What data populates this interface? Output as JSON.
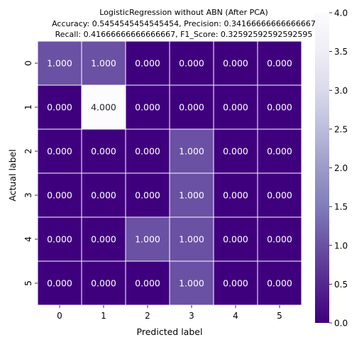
{
  "chart_data": {
    "type": "heatmap",
    "title_lines": [
      "LogisticRegression without ABN (After PCA)",
      "Accuracy: 0.5454545454545454, Precision: 0.34166666666666667",
      "Recall: 0.41666666666666667, F1_Score: 0.32592592592592595"
    ],
    "xlabel": "Predicted label",
    "ylabel": "Actual label",
    "x_categories": [
      "0",
      "1",
      "2",
      "3",
      "4",
      "5"
    ],
    "y_categories": [
      "0",
      "1",
      "2",
      "3",
      "4",
      "5"
    ],
    "matrix": [
      [
        1,
        1,
        0,
        0,
        0,
        0
      ],
      [
        0,
        4,
        0,
        0,
        0,
        0
      ],
      [
        0,
        0,
        0,
        1,
        0,
        0
      ],
      [
        0,
        0,
        0,
        1,
        0,
        0
      ],
      [
        0,
        0,
        1,
        1,
        0,
        0
      ],
      [
        0,
        0,
        0,
        1,
        0,
        0
      ]
    ],
    "cell_labels": [
      [
        "1.000",
        "1.000",
        "0.000",
        "0.000",
        "0.000",
        "0.000"
      ],
      [
        "0.000",
        "4.000",
        "0.000",
        "0.000",
        "0.000",
        "0.000"
      ],
      [
        "0.000",
        "0.000",
        "0.000",
        "1.000",
        "0.000",
        "0.000"
      ],
      [
        "0.000",
        "0.000",
        "0.000",
        "1.000",
        "0.000",
        "0.000"
      ],
      [
        "0.000",
        "0.000",
        "1.000",
        "1.000",
        "0.000",
        "0.000"
      ],
      [
        "0.000",
        "0.000",
        "0.000",
        "1.000",
        "0.000",
        "0.000"
      ]
    ],
    "colorbar": {
      "range": [
        0,
        4
      ],
      "ticks": [
        "0.0",
        "0.5",
        "1.0",
        "1.5",
        "2.0",
        "2.5",
        "3.0",
        "3.5",
        "4.0"
      ],
      "colormap": "Purples_r",
      "colors": [
        "#3f007d",
        "#54278f",
        "#6a51a3",
        "#807dba",
        "#9e9ac8",
        "#bcbddc",
        "#dadaeb",
        "#efedf5",
        "#fcfbfd"
      ]
    },
    "grid_line_color": "#ffffff"
  }
}
